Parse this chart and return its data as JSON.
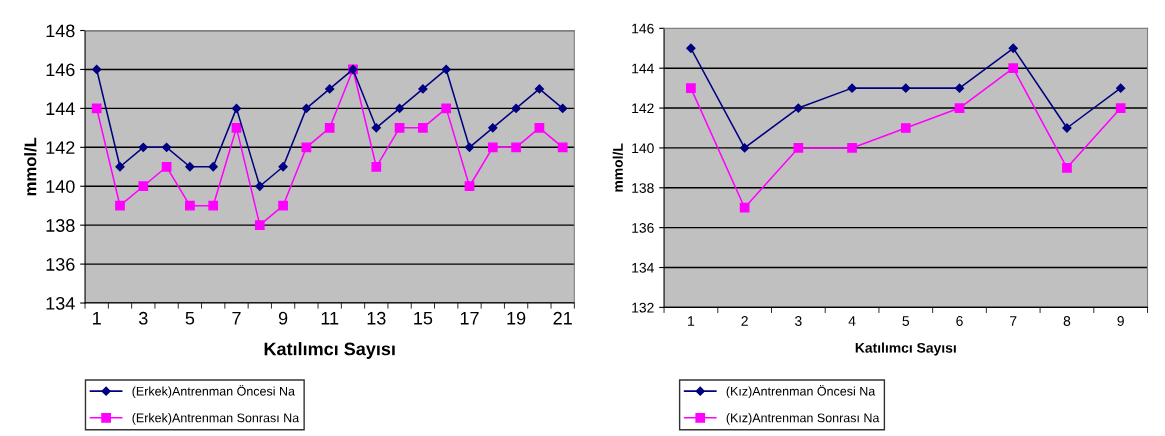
{
  "chart_data": [
    {
      "type": "line",
      "ylabel": "mmol/L",
      "xlabel": "Katılımcı Sayısı",
      "categories": [
        "1",
        null,
        "3",
        null,
        "5",
        null,
        "7",
        null,
        "9",
        null,
        "11",
        null,
        "13",
        null,
        "15",
        null,
        "17",
        null,
        "19",
        null,
        "21"
      ],
      "series": [
        {
          "name": "(Erkek)Antrenman Öncesi Na",
          "color": "#000080",
          "marker": "diamond",
          "values": [
            146,
            141,
            142,
            142,
            141,
            141,
            144,
            140,
            141,
            144,
            145,
            146,
            143,
            144,
            145,
            146,
            142,
            143,
            144,
            145,
            144
          ]
        },
        {
          "name": "(Erkek)Antrenman Sonrası Na",
          "color": "#ff00ff",
          "marker": "square",
          "values": [
            144,
            139,
            140,
            141,
            139,
            139,
            143,
            138,
            139,
            142,
            143,
            146,
            141,
            143,
            143,
            144,
            140,
            142,
            142,
            143,
            142
          ]
        }
      ],
      "ylim": [
        134,
        148
      ],
      "yticks": [
        134,
        136,
        138,
        140,
        142,
        144,
        146,
        148
      ],
      "grid": "y",
      "legend": "bottom left"
    },
    {
      "type": "line",
      "ylabel": "mmol/L",
      "xlabel": "Katılımcı Sayısı",
      "categories": [
        "1",
        "2",
        "3",
        "4",
        "5",
        "6",
        "7",
        "8",
        "9"
      ],
      "series": [
        {
          "name": "(Kız)Antrenman Öncesi Na",
          "color": "#000080",
          "marker": "diamond",
          "values": [
            145,
            140,
            142,
            143,
            143,
            143,
            145,
            141,
            143
          ]
        },
        {
          "name": "(Kız)Antrenman Sonrası Na",
          "color": "#ff00ff",
          "marker": "square",
          "values": [
            143,
            137,
            140,
            140,
            141,
            142,
            144,
            139,
            142
          ]
        }
      ],
      "ylim": [
        132,
        146
      ],
      "yticks": [
        132,
        134,
        136,
        138,
        140,
        142,
        144,
        146
      ],
      "grid": "y",
      "legend": "bottom left"
    }
  ]
}
